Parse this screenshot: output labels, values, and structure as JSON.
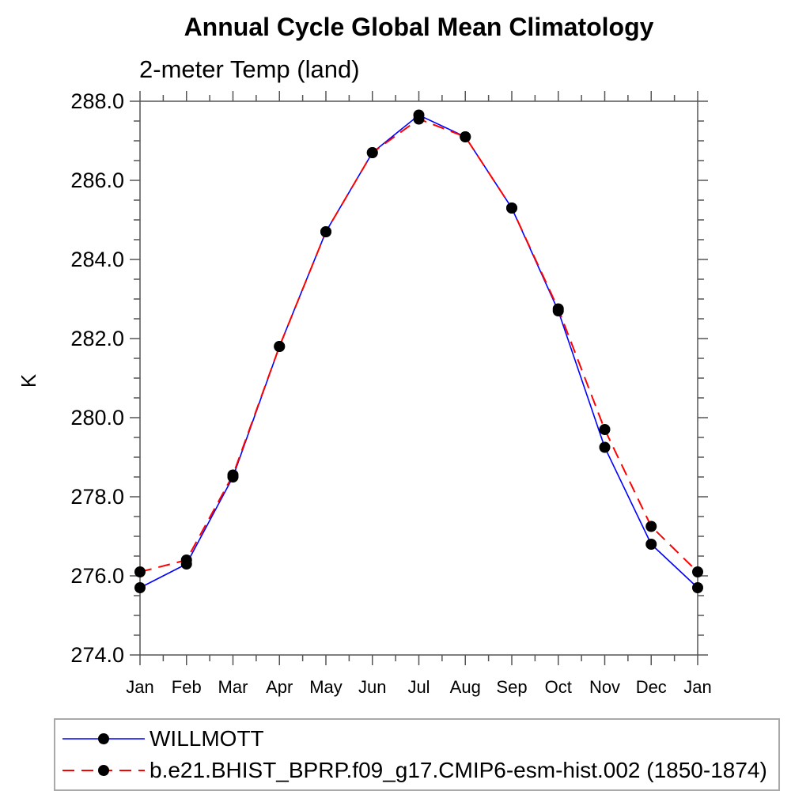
{
  "page": {
    "title": "Annual Cycle Global Mean Climatology",
    "subtitle": "2-meter Temp (land)"
  },
  "chart_data": {
    "type": "line",
    "title": "Annual Cycle Global Mean Climatology",
    "subtitle": "2-meter Temp (land)",
    "ylabel": "K",
    "ylim": [
      274.0,
      288.0
    ],
    "y_major_tick_step": 2.0,
    "y_minor_tick_step": 0.5,
    "y_tick_labels": [
      "288.0",
      "286.0",
      "284.0",
      "282.0",
      "280.0",
      "278.0",
      "276.0",
      "274.0"
    ],
    "x_categories": [
      "Jan",
      "Feb",
      "Mar",
      "Apr",
      "May",
      "Jun",
      "Jul",
      "Aug",
      "Sep",
      "Oct",
      "Nov",
      "Dec",
      "Jan"
    ],
    "x_minor_ticks_between_months": 1,
    "grid": false,
    "legend_position": "bottom-left",
    "series": [
      {
        "name": "WILLMOTT",
        "color": "#0000ff",
        "line_style": "solid",
        "marker": "circle",
        "marker_color": "#000000",
        "values": [
          275.7,
          276.3,
          278.5,
          281.8,
          284.7,
          286.7,
          287.65,
          287.1,
          285.3,
          282.7,
          279.25,
          276.8,
          275.7
        ]
      },
      {
        "name": "b.e21.BHIST_BPRP.f09_g17.CMIP6-esm-hist.002 (1850-1874)",
        "color": "#ff0000",
        "line_style": "dashed",
        "marker": "circle",
        "marker_color": "#000000",
        "values": [
          276.1,
          276.4,
          278.55,
          281.8,
          284.7,
          286.7,
          287.55,
          287.1,
          285.3,
          282.75,
          279.7,
          277.25,
          276.1
        ]
      }
    ],
    "axis_color": "#555555",
    "text_color": "#000000",
    "legend_border_color": "#a9a9a9"
  }
}
